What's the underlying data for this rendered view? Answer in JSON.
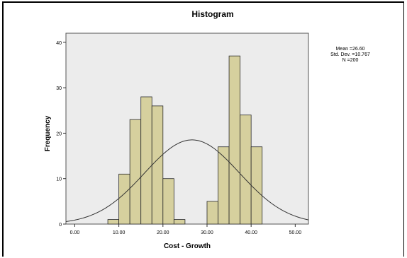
{
  "chart_data": {
    "type": "bar",
    "title": "Histogram",
    "xlabel": "Cost - Growth",
    "ylabel": "Frequency",
    "x_tick_labels": [
      "0.00",
      "10.00",
      "20.00",
      "30.00",
      "40.00",
      "50.00"
    ],
    "x_ticks": [
      0,
      10,
      20,
      30,
      40,
      50
    ],
    "y_ticks": [
      0,
      10,
      20,
      30,
      40
    ],
    "xlim": [
      -2.0,
      53.0
    ],
    "ylim": [
      0,
      42
    ],
    "bin_width": 2.5,
    "bins": [
      {
        "start": 7.5,
        "count": 1
      },
      {
        "start": 10.0,
        "count": 11
      },
      {
        "start": 12.5,
        "count": 23
      },
      {
        "start": 15.0,
        "count": 28
      },
      {
        "start": 17.5,
        "count": 26
      },
      {
        "start": 20.0,
        "count": 10
      },
      {
        "start": 22.5,
        "count": 1
      },
      {
        "start": 30.0,
        "count": 5
      },
      {
        "start": 32.5,
        "count": 17
      },
      {
        "start": 35.0,
        "count": 37
      },
      {
        "start": 37.5,
        "count": 24
      },
      {
        "start": 40.0,
        "count": 17
      }
    ],
    "normal_curve": {
      "mean": 26.6,
      "sd": 10.767,
      "n": 200
    },
    "stats_labels": [
      "Mean =26.60",
      "Std. Dev. =10.767",
      "N =200"
    ],
    "colors": {
      "bar_fill": "#d6d09e",
      "bar_stroke": "#2a2a2a",
      "plot_bg": "#ececec",
      "curve": "#333333"
    }
  }
}
